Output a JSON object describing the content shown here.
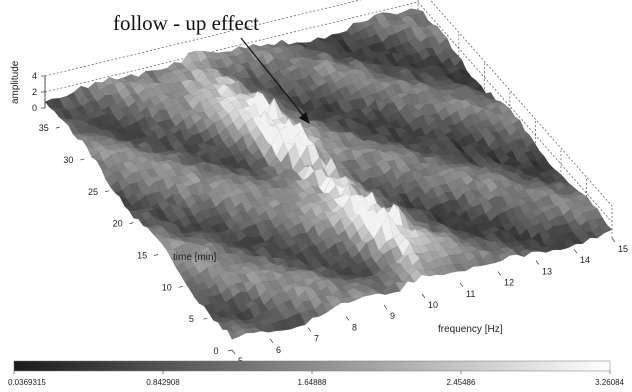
{
  "chart_data": {
    "type": "surface",
    "annotation": "follow - up effect",
    "xlabel": "frequency [Hz]",
    "ylabel": "time [min]",
    "zlabel": "amplitude",
    "x_ticks": [
      "5",
      "6",
      "7",
      "8",
      "9",
      "10",
      "11",
      "12",
      "13",
      "14",
      "15"
    ],
    "y_ticks": [
      "0",
      "5",
      "10",
      "15",
      "20",
      "25",
      "30",
      "35"
    ],
    "z_ticks": [
      "0",
      "2",
      "4"
    ],
    "colorbar_ticks": [
      "0.0369315",
      "0.842908",
      "1.64888",
      "2.45486",
      "3.26084"
    ],
    "xlim": [
      5,
      15
    ],
    "ylim": [
      0,
      38
    ],
    "zlim": [
      0,
      4
    ],
    "colormap": "gray",
    "colorbar_range": [
      0.0369315,
      3.26084
    ],
    "ridge": {
      "description": "bright band of high amplitude running diagonally through the surface, strongest around 9–10 Hz",
      "points": [
        {
          "time": 36,
          "frequency": 9.0
        },
        {
          "time": 25,
          "frequency": 9.4
        },
        {
          "time": 15,
          "frequency": 9.8
        },
        {
          "time": 5,
          "frequency": 10.2
        }
      ]
    },
    "grid": true,
    "colors": {
      "low": "#262626",
      "high": "#f2f2f2"
    }
  }
}
